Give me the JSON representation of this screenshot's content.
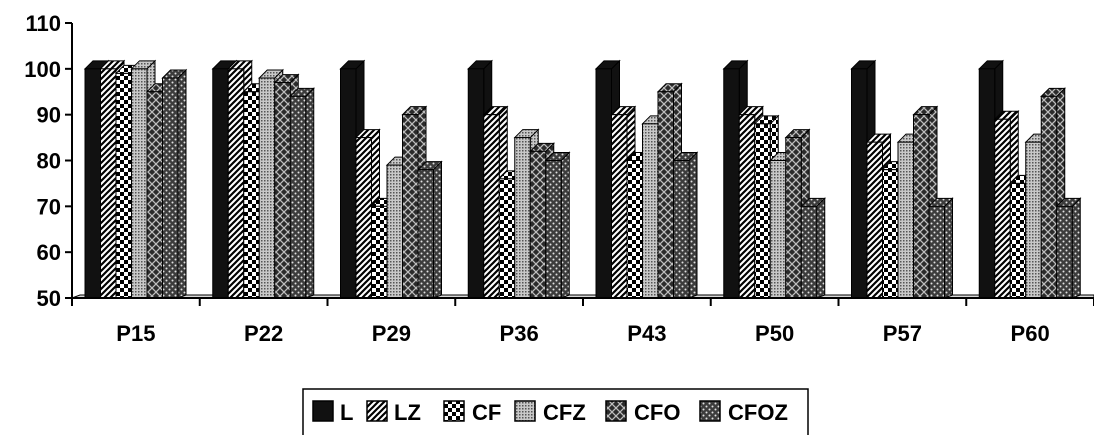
{
  "chart_data": {
    "type": "bar",
    "title": "",
    "xlabel": "",
    "ylabel": "",
    "categories": [
      "P15",
      "P22",
      "P29",
      "P36",
      "P43",
      "P50",
      "P57",
      "P60"
    ],
    "series": [
      {
        "name": "L",
        "color": "#111111",
        "pattern": "solid",
        "values": [
          100,
          100,
          100,
          100,
          100,
          100,
          100,
          100
        ]
      },
      {
        "name": "LZ",
        "color": "#111111",
        "pattern": "diagonal",
        "values": [
          100,
          100,
          85,
          90,
          90,
          90,
          84,
          89
        ]
      },
      {
        "name": "CF",
        "color": "#111111",
        "pattern": "checker",
        "values": [
          99,
          95,
          70,
          76,
          80,
          88,
          78,
          75
        ]
      },
      {
        "name": "CFZ",
        "color": "#9a9a9a",
        "pattern": "dots",
        "values": [
          100,
          98,
          79,
          85,
          88,
          80,
          84,
          84
        ]
      },
      {
        "name": "CFO",
        "color": "#3a3a3a",
        "pattern": "weave",
        "values": [
          95,
          97,
          90,
          82,
          95,
          85,
          90,
          94
        ]
      },
      {
        "name": "CFOZ",
        "color": "#6a6a6a",
        "pattern": "speckle",
        "values": [
          98,
          94,
          78,
          80,
          80,
          70,
          70,
          70
        ]
      }
    ],
    "ylim": [
      50,
      110
    ],
    "yticks": [
      50,
      60,
      70,
      80,
      90,
      100,
      110
    ],
    "grid": false,
    "legend": "bottom"
  }
}
